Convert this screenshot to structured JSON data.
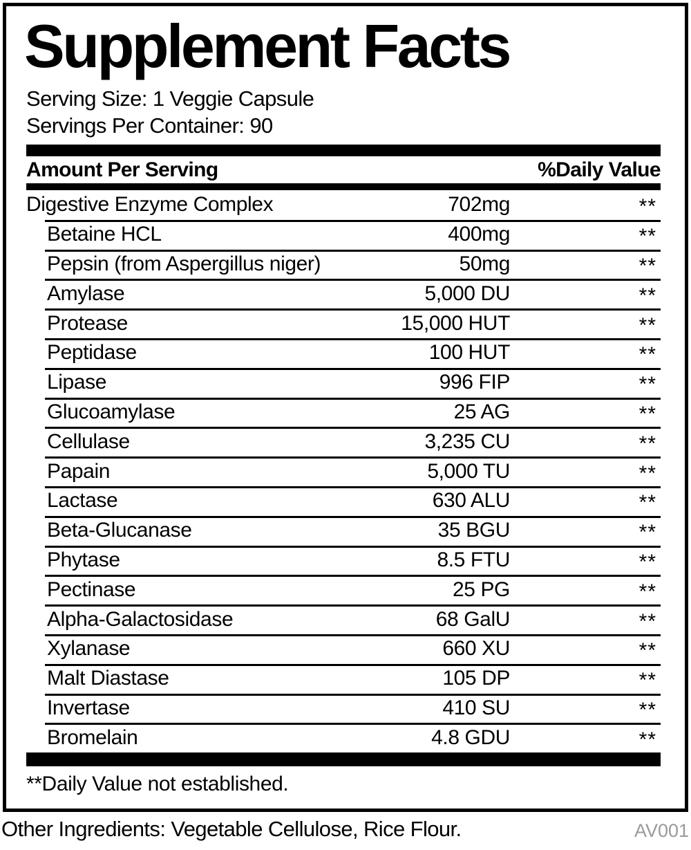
{
  "panel": {
    "title": "Supplement Facts",
    "serving_size": "Serving Size: 1 Veggie Capsule",
    "servings_per_container": "Servings Per Container: 90",
    "columns": {
      "amount": "Amount Per Serving",
      "daily_value": "%Daily Value"
    },
    "rows": [
      {
        "name": "Digestive Enzyme Complex",
        "amount": "702mg",
        "dv": "**",
        "indent": false
      },
      {
        "name": "Betaine HCL",
        "amount": "400mg",
        "dv": "**",
        "indent": true
      },
      {
        "name": "Pepsin (from Aspergillus niger)",
        "amount": "50mg",
        "dv": "**",
        "indent": true
      },
      {
        "name": "Amylase",
        "amount": "5,000 DU",
        "dv": "**",
        "indent": true
      },
      {
        "name": "Protease",
        "amount": "15,000 HUT",
        "dv": "**",
        "indent": true
      },
      {
        "name": "Peptidase",
        "amount": "100 HUT",
        "dv": "**",
        "indent": true
      },
      {
        "name": "Lipase",
        "amount": "996 FIP",
        "dv": "**",
        "indent": true
      },
      {
        "name": "Glucoamylase",
        "amount": "25 AG",
        "dv": "**",
        "indent": true
      },
      {
        "name": "Cellulase",
        "amount": "3,235 CU",
        "dv": "**",
        "indent": true
      },
      {
        "name": "Papain",
        "amount": "5,000 TU",
        "dv": "**",
        "indent": true
      },
      {
        "name": "Lactase",
        "amount": "630 ALU",
        "dv": "**",
        "indent": true
      },
      {
        "name": "Beta-Glucanase",
        "amount": "35 BGU",
        "dv": "**",
        "indent": true
      },
      {
        "name": "Phytase",
        "amount": "8.5 FTU",
        "dv": "**",
        "indent": true
      },
      {
        "name": "Pectinase",
        "amount": "25 PG",
        "dv": "**",
        "indent": true
      },
      {
        "name": "Alpha-Galactosidase",
        "amount": "68 GalU",
        "dv": "**",
        "indent": true
      },
      {
        "name": "Xylanase",
        "amount": "660 XU",
        "dv": "**",
        "indent": true
      },
      {
        "name": "Malt Diastase",
        "amount": "105 DP",
        "dv": "**",
        "indent": true
      },
      {
        "name": "Invertase",
        "amount": "410 SU",
        "dv": "**",
        "indent": true
      },
      {
        "name": "Bromelain",
        "amount": "4.8 GDU",
        "dv": "**",
        "indent": true
      }
    ],
    "footnote": "**Daily Value not established."
  },
  "footer": {
    "other_ingredients": "Other Ingredients: Vegetable Cellulose, Rice Flour.",
    "code": "AV001"
  },
  "colors": {
    "text": "#000000",
    "bar": "#000000",
    "code_gray": "#9a9a9a"
  }
}
